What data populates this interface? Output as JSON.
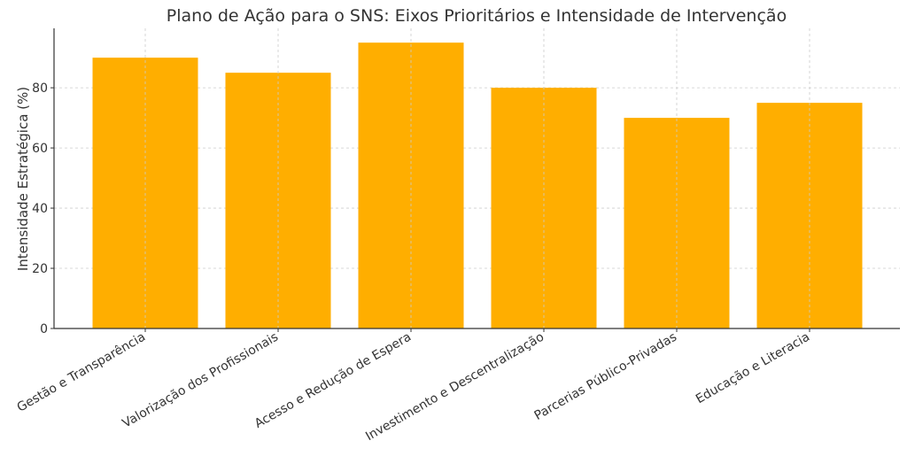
{
  "chart_data": {
    "type": "bar",
    "title": "Plano de Ação para o SNS: Eixos Prioritários e Intensidade de Intervenção",
    "xlabel": "",
    "ylabel": "Intensidade Estratégica (%)",
    "categories": [
      "Gestão e Transparência",
      "Valorização dos Profissionais",
      "Acesso e Redução de Espera",
      "Investimento e Descentralização",
      "Parcerias Público-Privadas",
      "Educação e Literacia"
    ],
    "values": [
      90,
      85,
      95,
      80,
      70,
      75
    ],
    "ylim": [
      0,
      99.75
    ],
    "yticks": [
      0,
      20,
      40,
      60,
      80
    ],
    "grid": true,
    "bar_color": "#FFAE00"
  }
}
